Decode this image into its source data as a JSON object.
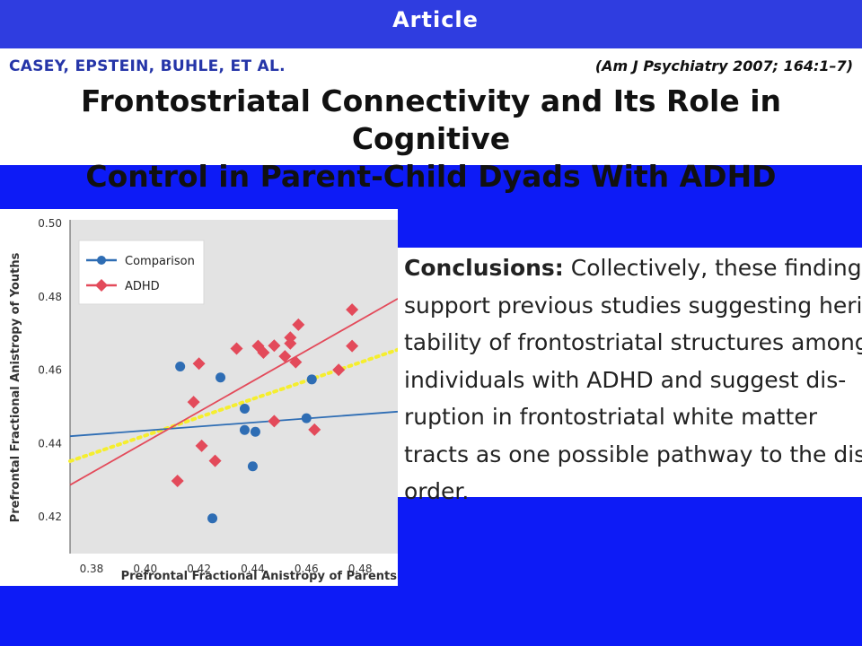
{
  "banner": {
    "label": "Article"
  },
  "header": {
    "authors": "CASEY, EPSTEIN, BUHLE, ET AL.",
    "citation": "(Am J Psychiatry 2007; 164:1–7)",
    "title_lines": [
      "Frontostriatal Connectivity and Its Role in Cognitive",
      "Control in Parent-Child Dyads With ADHD"
    ]
  },
  "conclusion": {
    "label": "Conclusions:",
    "lines": [
      " Collectively, these findings",
      "support previous studies suggesting heri-",
      "tability of frontostriatal structures among",
      "individuals with ADHD and suggest dis-",
      "ruption in frontostriatal white matter",
      "tracts as one possible pathway to the dis-",
      "order."
    ]
  },
  "chart_data": {
    "type": "scatter",
    "xlabel": "Prefrontal Fractional Anistropy of Parents",
    "ylabel": "Prefrontal Fractional Anistropy of Youths",
    "xlim": [
      0.372,
      0.494
    ],
    "ylim": [
      0.41,
      0.501
    ],
    "x_ticks": [
      "0.38",
      "0.40",
      "0.42",
      "0.44",
      "0.46",
      "0.48"
    ],
    "x_tick_values": [
      0.38,
      0.4,
      0.42,
      0.44,
      0.46,
      0.48
    ],
    "y_ticks": [
      "0.42",
      "0.44",
      "0.46",
      "0.48",
      "0.50"
    ],
    "y_tick_values": [
      0.42,
      0.44,
      0.46,
      0.48,
      0.5
    ],
    "legend_position": "top-left",
    "background": "#e3e3e3",
    "series": [
      {
        "name": "Comparison",
        "color": "#2e6db4",
        "marker": "circle",
        "points": [
          [
            0.413,
            0.461
          ],
          [
            0.428,
            0.458
          ],
          [
            0.437,
            0.4495
          ],
          [
            0.437,
            0.4437
          ],
          [
            0.441,
            0.4432
          ],
          [
            0.44,
            0.4338
          ],
          [
            0.425,
            0.4196
          ],
          [
            0.46,
            0.4469
          ],
          [
            0.462,
            0.4575
          ]
        ],
        "fit": [
          [
            0.372,
            0.442
          ],
          [
            0.494,
            0.4487
          ]
        ]
      },
      {
        "name": "ADHD",
        "color": "#e34a5a",
        "marker": "diamond",
        "points": [
          [
            0.418,
            0.4513
          ],
          [
            0.42,
            0.4618
          ],
          [
            0.421,
            0.4394
          ],
          [
            0.412,
            0.4298
          ],
          [
            0.426,
            0.4353
          ],
          [
            0.434,
            0.4659
          ],
          [
            0.442,
            0.4666
          ],
          [
            0.444,
            0.4648
          ],
          [
            0.448,
            0.4667
          ],
          [
            0.448,
            0.4461
          ],
          [
            0.452,
            0.4638
          ],
          [
            0.454,
            0.4689
          ],
          [
            0.454,
            0.4673
          ],
          [
            0.456,
            0.4622
          ],
          [
            0.457,
            0.4724
          ],
          [
            0.463,
            0.4438
          ],
          [
            0.472,
            0.4601
          ],
          [
            0.477,
            0.4666
          ],
          [
            0.477,
            0.4765
          ]
        ],
        "fit": [
          [
            0.372,
            0.4287
          ],
          [
            0.494,
            0.4795
          ]
        ]
      }
    ],
    "extra_fit": {
      "color": "#f5ee2e",
      "style": "dotted",
      "fit": [
        [
          0.372,
          0.4352
        ],
        [
          0.494,
          0.4656
        ]
      ]
    }
  }
}
